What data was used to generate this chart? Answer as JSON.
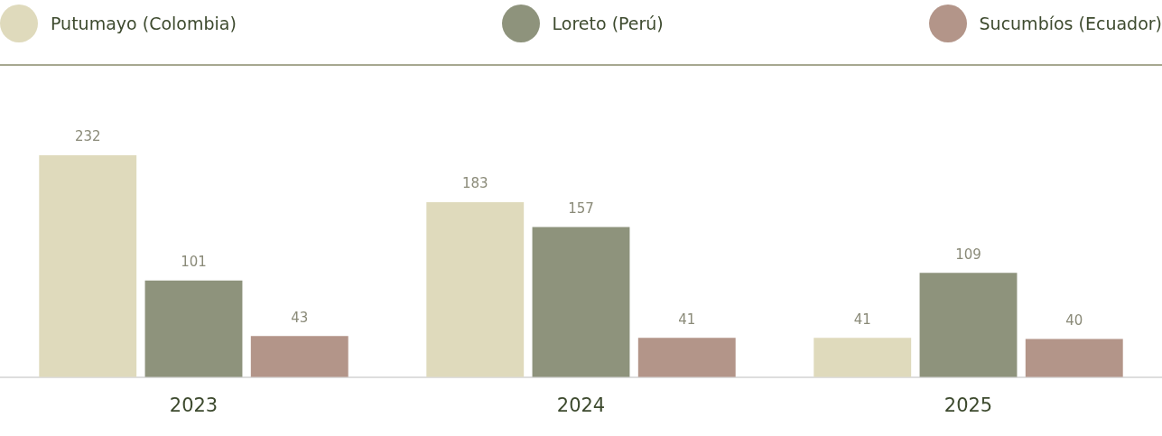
{
  "chart_data": {
    "type": "bar",
    "categories": [
      "2023",
      "2024",
      "2025"
    ],
    "series": [
      {
        "name": "Putumayo (Colombia)",
        "color": "#dfdabc",
        "values": [
          232,
          183,
          41
        ]
      },
      {
        "name": "Loreto (Perú)",
        "color": "#8e937c",
        "values": [
          101,
          157,
          109
        ]
      },
      {
        "name": "Sucumbíos (Ecuador)",
        "color": "#b39589",
        "values": [
          43,
          41,
          40
        ]
      }
    ],
    "data_labels": true,
    "legend": "top",
    "grid": false
  }
}
